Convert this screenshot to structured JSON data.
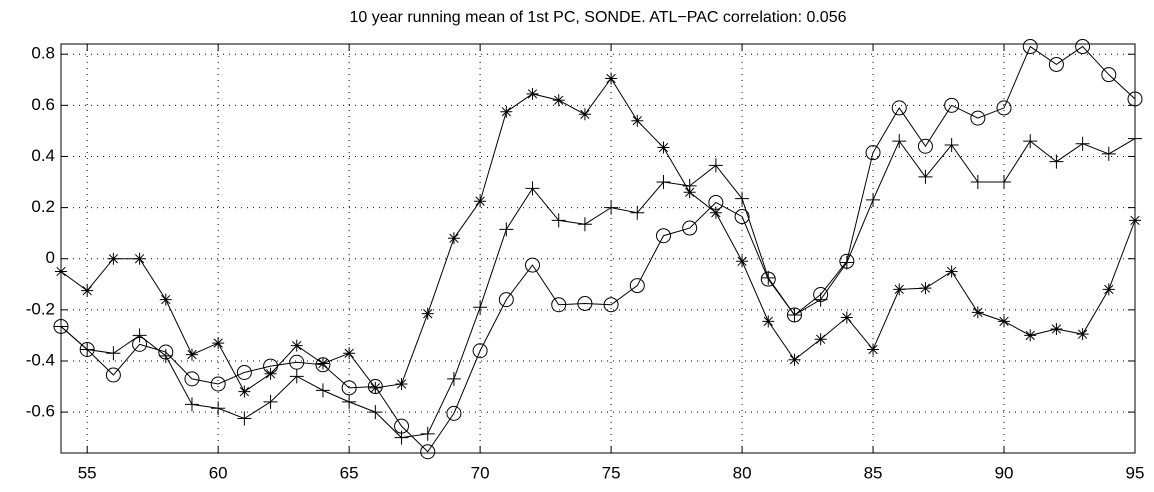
{
  "chart_data": {
    "type": "line",
    "title": "10 year running mean of 1st PC, SONDE. ATL−PAC correlation: 0.056",
    "x": [
      54,
      55,
      56,
      57,
      58,
      59,
      60,
      61,
      62,
      63,
      64,
      65,
      66,
      67,
      68,
      69,
      70,
      71,
      72,
      73,
      74,
      75,
      76,
      77,
      78,
      79,
      80,
      81,
      82,
      83,
      84,
      85,
      86,
      87,
      88,
      89,
      90,
      91,
      92,
      93,
      94,
      95
    ],
    "series": [
      {
        "marker": "star",
        "color": "#000000",
        "values": [
          -0.05,
          -0.125,
          0,
          0,
          -0.16,
          -0.375,
          -0.33,
          -0.52,
          -0.45,
          -0.34,
          -0.41,
          -0.37,
          -0.505,
          -0.49,
          -0.215,
          0.08,
          0.225,
          0.575,
          0.645,
          0.62,
          0.565,
          0.705,
          0.54,
          0.435,
          0.26,
          0.18,
          -0.01,
          -0.245,
          -0.395,
          -0.315,
          -0.23,
          -0.355,
          -0.12,
          -0.115,
          -0.05,
          -0.21,
          -0.245,
          -0.3,
          -0.275,
          -0.295,
          -0.12,
          0.15
        ]
      },
      {
        "marker": "plus",
        "color": "#000000",
        "values": [
          -0.265,
          -0.355,
          -0.37,
          -0.3,
          -0.38,
          -0.57,
          -0.585,
          -0.625,
          -0.56,
          -0.46,
          -0.515,
          -0.56,
          -0.6,
          -0.7,
          -0.685,
          -0.47,
          -0.19,
          0.115,
          0.275,
          0.15,
          0.135,
          0.2,
          0.18,
          0.3,
          0.285,
          0.365,
          0.235,
          -0.075,
          -0.22,
          -0.16,
          -0.015,
          0.23,
          0.46,
          0.32,
          0.445,
          0.3,
          0.3,
          0.46,
          0.38,
          0.45,
          0.41,
          0.47
        ]
      },
      {
        "marker": "circle",
        "color": "#000000",
        "values": [
          -0.265,
          -0.355,
          -0.455,
          -0.335,
          -0.365,
          -0.47,
          -0.49,
          -0.445,
          -0.42,
          -0.405,
          -0.415,
          -0.505,
          -0.5,
          -0.655,
          -0.755,
          -0.605,
          -0.36,
          -0.16,
          -0.025,
          -0.18,
          -0.175,
          -0.18,
          -0.105,
          0.09,
          0.12,
          0.22,
          0.165,
          -0.08,
          -0.22,
          -0.14,
          -0.01,
          0.415,
          0.59,
          0.44,
          0.6,
          0.55,
          0.59,
          0.83,
          0.76,
          0.83,
          0.72,
          0.625
        ]
      }
    ],
    "xlim": [
      54,
      95
    ],
    "xticks": [
      55,
      60,
      65,
      70,
      75,
      80,
      85,
      90,
      95
    ],
    "ylim": [
      -0.76,
      0.84
    ],
    "yticks": [
      -0.6,
      -0.4,
      -0.2,
      0,
      0.2,
      0.4,
      0.6,
      0.8
    ],
    "grid": true
  }
}
